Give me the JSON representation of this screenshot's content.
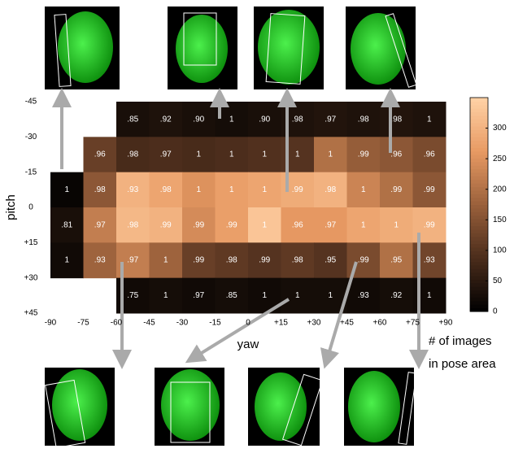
{
  "chart_data": {
    "type": "heatmap",
    "x_label": "yaw",
    "y_label": "pitch",
    "colorbar_label": [
      "# of images",
      "in pose area"
    ],
    "xticks": [
      -90,
      -75,
      -60,
      -45,
      -30,
      -15,
      0,
      {
        "value": 15,
        "label": "+15"
      },
      {
        "value": 30,
        "label": "+30"
      },
      {
        "value": 45,
        "label": "+45"
      },
      {
        "value": 60,
        "label": "+60"
      },
      {
        "value": 75,
        "label": "+75"
      },
      {
        "value": 90,
        "label": "+90"
      }
    ],
    "yticks": [
      -45,
      -30,
      -15,
      0,
      {
        "value": 15,
        "label": "+15"
      },
      {
        "value": 30,
        "label": "+30"
      },
      {
        "value": 45,
        "label": "+45"
      }
    ],
    "xlim": [
      -90,
      90
    ],
    "ylim": [
      -45,
      45
    ],
    "clim": [
      0,
      350
    ],
    "cticks": [
      0,
      50,
      100,
      150,
      200,
      250,
      300
    ],
    "colormap": [
      "#000000",
      "#4a2c1b",
      "#9a603b",
      "#e89a63",
      "#ffd2a6"
    ],
    "rows": [
      {
        "counts": [
          null,
          null,
          30,
          35,
          30,
          25,
          30,
          35,
          40,
          35,
          40,
          35
        ],
        "accuracy": [
          null,
          null,
          ".85",
          ".92",
          ".90",
          "1",
          ".90",
          ".98",
          ".97",
          ".98",
          ".98",
          "1"
        ]
      },
      {
        "counts": [
          null,
          120,
          85,
          90,
          85,
          90,
          95,
          100,
          200,
          170,
          160,
          140
        ],
        "accuracy": [
          null,
          ".96",
          ".98",
          ".97",
          "1",
          "1",
          "1",
          "1",
          "1",
          ".99",
          ".96",
          ".96"
        ]
      },
      {
        "counts": [
          10,
          160,
          300,
          280,
          250,
          270,
          280,
          290,
          300,
          230,
          200,
          160
        ],
        "accuracy": [
          "1",
          ".98",
          ".93",
          ".98",
          "1",
          "1",
          "1",
          ".99",
          ".98",
          "1",
          ".99",
          ".99"
        ]
      },
      {
        "counts": [
          30,
          220,
          310,
          300,
          240,
          270,
          330,
          260,
          260,
          280,
          290,
          300
        ],
        "accuracy": [
          ".81",
          ".97",
          ".98",
          ".99",
          ".99",
          ".99",
          "1",
          ".96",
          ".97",
          "1",
          "1",
          ".99"
        ]
      },
      {
        "counts": [
          20,
          180,
          220,
          180,
          120,
          110,
          100,
          110,
          100,
          140,
          200,
          130
        ],
        "accuracy": [
          "1",
          ".93",
          ".97",
          "1",
          ".99",
          ".98",
          ".99",
          ".98",
          ".95",
          ".99",
          ".95",
          ".93"
        ]
      },
      {
        "counts": [
          null,
          null,
          20,
          25,
          20,
          25,
          20,
          25,
          25,
          20,
          25,
          20
        ],
        "accuracy": [
          null,
          null,
          ".75",
          "1",
          ".97",
          ".85",
          "1",
          "1",
          "1",
          ".93",
          ".92",
          "1"
        ]
      }
    ]
  }
}
